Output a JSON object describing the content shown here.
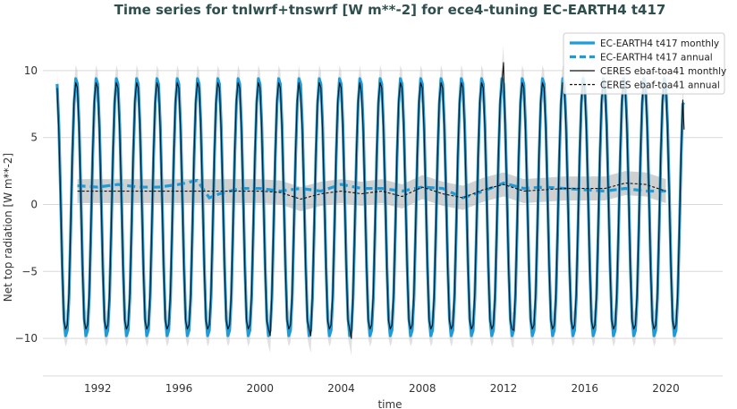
{
  "chart_data": {
    "type": "line",
    "title": "Time series for tnlwrf+tnswrf [W m**-2] for ece4-tuning EC-EARTH4 t417",
    "xlabel": "time",
    "ylabel": "Net top radiation [W m**-2]",
    "xlim": [
      1989.3,
      2022.8
    ],
    "ylim": [
      -12.8,
      13.0
    ],
    "x_ticks": [
      1992,
      1996,
      2000,
      2004,
      2008,
      2012,
      2016,
      2020
    ],
    "x_tick_labels": [
      "1992",
      "1996",
      "2000",
      "2004",
      "2008",
      "2012",
      "2016",
      "2020"
    ],
    "y_ticks": [
      -10,
      -5,
      0,
      5,
      10
    ],
    "y_tick_labels": [
      "−10",
      "−5",
      "0",
      "5",
      "10"
    ],
    "grid": "horizontal",
    "legend_position": "top-right",
    "colors": {
      "model": "#1f9bd7",
      "obs": "#111111",
      "band": "#c8c8c8"
    },
    "series": [
      {
        "name": "EC-EARTH4 t417 monthly",
        "style": "solid-thick",
        "x_start": 1990.0,
        "x_end": 2020.9,
        "annual_cycle": [
          9.0,
          6.0,
          1.0,
          -4.5,
          -8.5,
          -9.8,
          -9.4,
          -7.0,
          -2.0,
          3.5,
          7.5,
          9.4
        ],
        "extra_points": [
          [
            2020.9,
            7.6
          ]
        ]
      },
      {
        "name": "EC-EARTH4 t417 annual",
        "style": "dashed-thick",
        "x": [
          1991.0,
          1992.0,
          1993.0,
          1994.0,
          1995.0,
          1996.0,
          1996.9,
          1997.5,
          1998.0,
          1999.0,
          2000.0,
          2001.0,
          2002.0,
          2003.0,
          2004.0,
          2005.0,
          2006.0,
          2007.0,
          2008.0,
          2009.0,
          2010.0,
          2011.0,
          2012.0,
          2013.0,
          2014.0,
          2015.0,
          2016.0,
          2017.0,
          2018.0,
          2019.0,
          2020.0
        ],
        "values": [
          1.4,
          1.3,
          1.5,
          1.3,
          1.3,
          1.5,
          1.8,
          0.5,
          0.8,
          1.2,
          1.2,
          1.0,
          1.2,
          1.0,
          1.5,
          1.2,
          1.2,
          1.0,
          1.3,
          1.2,
          0.5,
          1.0,
          1.6,
          1.2,
          1.3,
          1.2,
          1.1,
          1.0,
          1.2,
          1.0,
          1.0
        ]
      },
      {
        "name": "CERES ebaf-toa41 monthly",
        "style": "solid-thin",
        "x_start": 1990.0,
        "x_end": 2020.9,
        "annual_cycle": [
          8.7,
          5.5,
          0.6,
          -4.8,
          -8.7,
          -9.3,
          -9.0,
          -6.6,
          -1.6,
          3.9,
          7.8,
          9.1
        ],
        "peak_offsets": [
          [
            2012.0,
            1.9
          ],
          [
            2002.0,
            -0.6
          ],
          [
            2005.0,
            -0.4
          ]
        ],
        "trough_offsets": [
          [
            2000.5,
            -0.8
          ],
          [
            2002.5,
            -0.8
          ],
          [
            2004.5,
            -1.0
          ],
          [
            2012.5,
            -0.4
          ]
        ],
        "extra_points": [
          [
            2020.9,
            5.6
          ]
        ]
      },
      {
        "name": "CERES ebaf-toa41 annual",
        "style": "dashed-thin",
        "x": [
          1991.0,
          1992.0,
          1993.0,
          1994.0,
          1995.0,
          1996.0,
          1997.0,
          1998.0,
          1999.0,
          2000.0,
          2001.0,
          2002.0,
          2003.0,
          2004.0,
          2005.0,
          2006.0,
          2007.0,
          2008.0,
          2009.0,
          2010.0,
          2011.0,
          2012.0,
          2013.0,
          2014.0,
          2015.0,
          2016.0,
          2017.0,
          2018.0,
          2019.0,
          2020.0
        ],
        "values": [
          1.0,
          1.0,
          1.0,
          1.0,
          1.0,
          1.0,
          1.0,
          1.0,
          1.0,
          1.0,
          0.9,
          0.4,
          0.8,
          1.0,
          0.8,
          1.0,
          0.6,
          1.3,
          0.8,
          0.5,
          1.1,
          1.5,
          1.0,
          1.1,
          1.2,
          1.2,
          1.2,
          1.6,
          1.5,
          1.0
        ]
      }
    ],
    "uncertainty_band": {
      "half_width_annual": 0.9,
      "half_width_monthly": 1.3
    }
  }
}
